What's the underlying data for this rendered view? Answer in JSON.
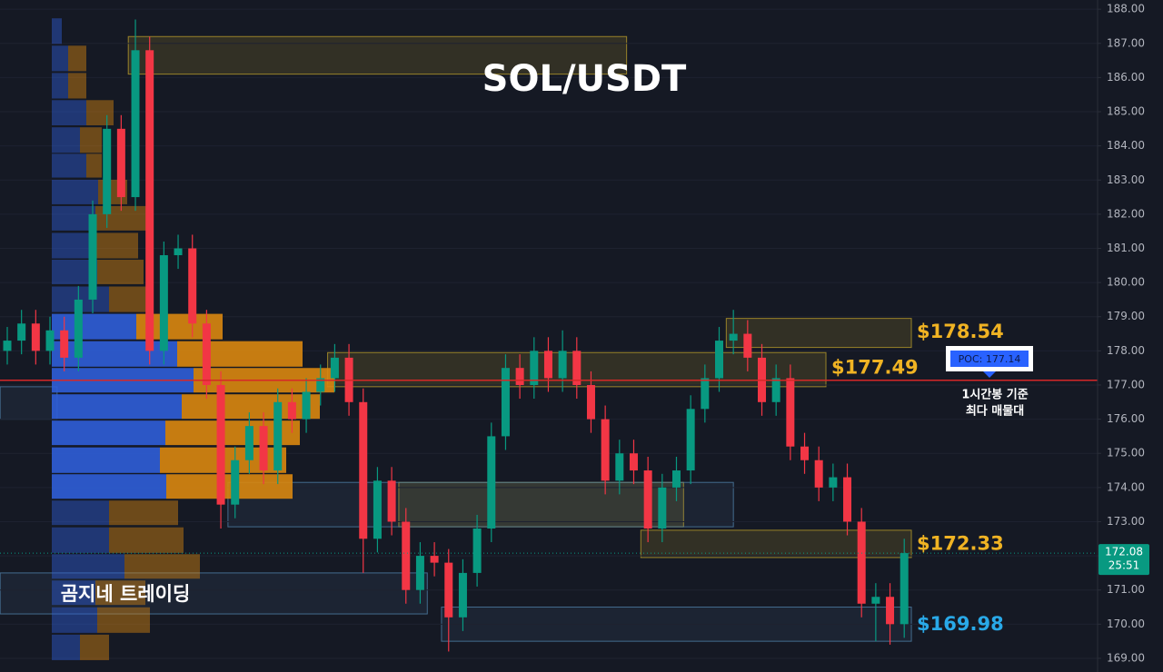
{
  "chart_data": {
    "type": "candlestick",
    "title": "SOL/USDT",
    "watermark": "곰지네 트레이딩",
    "ylim": [
      168.6,
      188.27
    ],
    "yticks": [
      {
        "value": 169,
        "label": "169.00"
      },
      {
        "value": 170,
        "label": "170.00"
      },
      {
        "value": 171,
        "label": "171.00"
      },
      {
        "value": 172,
        "label": "172.00"
      },
      {
        "value": 173,
        "label": "173.00"
      },
      {
        "value": 174,
        "label": "174.00"
      },
      {
        "value": 175,
        "label": "175.00"
      },
      {
        "value": 176,
        "label": "176.00"
      },
      {
        "value": 177,
        "label": "177.00"
      },
      {
        "value": 178,
        "label": "178.00"
      },
      {
        "value": 179,
        "label": "179.00"
      },
      {
        "value": 180,
        "label": "180.00"
      },
      {
        "value": 181,
        "label": "181.00"
      },
      {
        "value": 182,
        "label": "182.00"
      },
      {
        "value": 183,
        "label": "183.00"
      },
      {
        "value": 184,
        "label": "184.00"
      },
      {
        "value": 185,
        "label": "185.00"
      },
      {
        "value": 186,
        "label": "186.00"
      },
      {
        "value": 187,
        "label": "187.00"
      },
      {
        "value": 188,
        "label": "188.00"
      }
    ],
    "grid": true,
    "up_color": "#089981",
    "down_color": "#f23645",
    "open": [
      178.0,
      178.3,
      178.8,
      178.0,
      178.6,
      177.8,
      179.5,
      182.0,
      184.5,
      182.5,
      186.8,
      178.0,
      180.8,
      181.0,
      178.8,
      177.0,
      173.5,
      174.8,
      175.8,
      174.5,
      176.5,
      176.0,
      176.8,
      177.2,
      177.8,
      176.5,
      172.5,
      174.2,
      173.0,
      171.0,
      172.0,
      171.8,
      170.2,
      171.5,
      172.8,
      175.5,
      177.5,
      177.0,
      178.0,
      177.2,
      178.0,
      177.0,
      176.0,
      174.2,
      175.0,
      174.5,
      172.8,
      174.0,
      174.5,
      176.3,
      177.2,
      178.3,
      178.5,
      177.8,
      176.5,
      177.2,
      175.2,
      174.8,
      174.0,
      174.3,
      173.0,
      170.6,
      170.8,
      170.0
    ],
    "high": [
      178.7,
      179.2,
      179.2,
      179.0,
      179.0,
      179.9,
      182.4,
      184.9,
      184.9,
      187.7,
      187.2,
      181.2,
      181.4,
      181.4,
      179.2,
      177.4,
      175.2,
      176.2,
      176.2,
      176.9,
      176.9,
      177.2,
      177.6,
      178.2,
      178.2,
      176.9,
      174.6,
      174.6,
      173.4,
      172.4,
      172.4,
      172.2,
      171.9,
      173.2,
      175.9,
      177.9,
      177.9,
      178.4,
      178.4,
      178.6,
      178.4,
      177.4,
      176.4,
      175.4,
      175.4,
      174.9,
      174.4,
      174.9,
      176.7,
      177.6,
      178.7,
      179.2,
      178.9,
      178.2,
      177.6,
      177.6,
      175.6,
      175.2,
      174.7,
      174.7,
      173.4,
      171.2,
      171.2,
      172.5
    ],
    "low": [
      177.6,
      177.9,
      177.6,
      177.6,
      177.4,
      177.4,
      179.1,
      181.6,
      182.1,
      182.1,
      177.6,
      177.6,
      180.4,
      178.4,
      176.6,
      172.8,
      173.1,
      174.4,
      174.1,
      174.1,
      175.6,
      175.6,
      176.4,
      176.8,
      176.1,
      171.5,
      172.1,
      172.6,
      170.6,
      170.6,
      171.4,
      169.2,
      169.8,
      171.1,
      172.4,
      175.1,
      176.6,
      176.6,
      176.8,
      176.8,
      176.6,
      175.6,
      173.8,
      173.8,
      174.1,
      172.4,
      172.4,
      173.6,
      174.1,
      175.9,
      176.8,
      177.9,
      177.4,
      176.1,
      176.1,
      174.8,
      174.4,
      173.6,
      173.6,
      172.6,
      170.2,
      169.5,
      169.4,
      169.6
    ],
    "close": [
      178.3,
      178.8,
      178.0,
      178.6,
      177.8,
      179.5,
      182.0,
      184.5,
      182.5,
      186.8,
      178.0,
      180.8,
      181.0,
      178.8,
      177.0,
      173.5,
      174.8,
      175.8,
      174.5,
      176.5,
      176.0,
      176.8,
      177.2,
      177.8,
      176.5,
      172.5,
      174.2,
      173.0,
      171.0,
      172.0,
      171.8,
      170.2,
      171.5,
      172.8,
      175.5,
      177.5,
      177.0,
      178.0,
      177.2,
      178.0,
      177.0,
      176.0,
      174.2,
      175.0,
      174.5,
      172.8,
      174.0,
      174.5,
      176.3,
      177.2,
      178.3,
      178.5,
      177.8,
      176.5,
      177.2,
      175.2,
      174.8,
      174.0,
      174.3,
      173.0,
      170.6,
      170.8,
      170.0,
      172.08
    ],
    "volume_profile": {
      "prices": [
        187.36,
        186.56,
        185.76,
        184.97,
        184.17,
        183.42,
        182.65,
        181.88,
        181.08,
        180.31,
        179.51,
        178.71,
        177.91,
        177.14,
        176.37,
        175.6,
        174.8,
        174.03,
        173.26,
        172.46,
        171.69,
        170.92,
        170.12,
        169.32
      ],
      "buy": [
        11,
        18,
        18,
        38,
        31,
        38,
        51,
        48,
        46,
        50,
        63,
        93,
        138,
        156,
        143,
        125,
        119,
        126,
        63,
        63,
        80,
        48,
        50,
        31
      ],
      "sell": [
        0,
        20,
        20,
        30,
        24,
        17,
        32,
        57,
        49,
        51,
        42,
        95,
        138,
        155,
        152,
        148,
        139,
        139,
        76,
        82,
        83,
        55,
        58,
        32
      ],
      "buy_color": "#2f5ed8",
      "sell_color": "#d9870f"
    },
    "zones": [
      {
        "low": 186.1,
        "high": 187.2,
        "start": 9,
        "end": 43,
        "color": "#b59a2a"
      },
      {
        "low": 176.95,
        "high": 177.95,
        "start": 23,
        "end": 57,
        "color": "#b59a2a",
        "level": 177.49,
        "label": "$177.49"
      },
      {
        "low": 178.1,
        "high": 178.95,
        "start": 51,
        "end": 63,
        "color": "#b59a2a",
        "level": 178.54,
        "label": "$178.54"
      },
      {
        "low": 172.85,
        "high": 174.15,
        "start": 28,
        "end": 47,
        "color": "#b59a2a"
      },
      {
        "low": 171.95,
        "high": 172.75,
        "start": 45,
        "end": 63,
        "color": "#b59a2a",
        "level": 172.33,
        "label": "$172.33"
      },
      {
        "low": 176.0,
        "high": 176.95,
        "start": 0,
        "end": 3,
        "color": "#4f7fa8"
      },
      {
        "low": 172.85,
        "high": 174.15,
        "start": 16,
        "end": 50.5,
        "color": "#4f7fa8"
      },
      {
        "low": 170.3,
        "high": 171.5,
        "start": 0,
        "end": 29,
        "color": "#4f7fa8"
      },
      {
        "low": 169.5,
        "high": 170.5,
        "start": 31,
        "end": 63,
        "color": "#4f7fa8",
        "level": 169.98,
        "label": "$169.98"
      }
    ],
    "poc": {
      "value": 177.14,
      "label": "POC: 177.14",
      "note": [
        "1시간봉 기준",
        "최다 매물대"
      ],
      "color": "#d62828"
    },
    "last_price": {
      "value": 172.08,
      "countdown": "25:51",
      "color": "#089981"
    }
  }
}
